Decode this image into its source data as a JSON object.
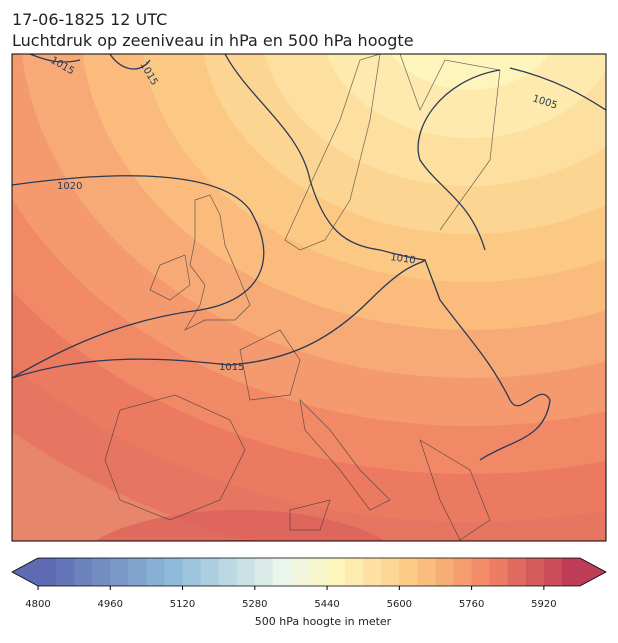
{
  "header": {
    "title_line1": "17-06-1825 12 UTC",
    "title_line2": "Luchtdruk op zeeniveau in hPa en 500 hPa hoogte"
  },
  "map": {
    "isobar_labels": [
      "1015",
      "1015",
      "1020",
      "1005",
      "1010",
      "1015"
    ]
  },
  "colorbar": {
    "lim": [
      4800,
      6000
    ],
    "ticks": [
      4800,
      4960,
      5120,
      5280,
      5440,
      5600,
      5760,
      5920
    ],
    "label": "500 hPa hoogte in meter"
  }
}
